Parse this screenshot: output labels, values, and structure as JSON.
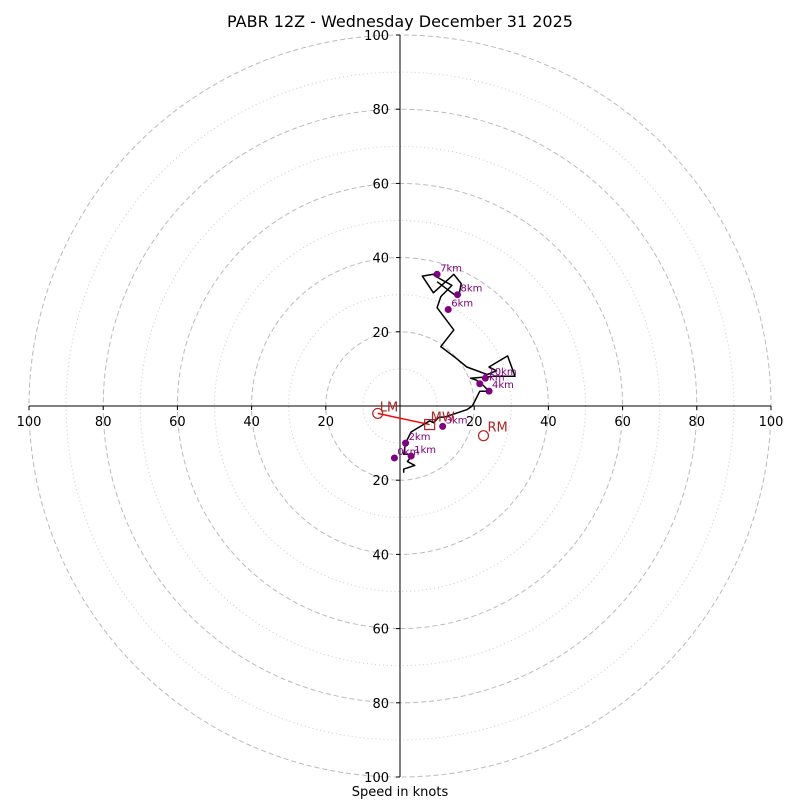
{
  "chart_data": {
    "type": "hodograph",
    "title": "PABR 12Z - Wednesday December 31 2025",
    "xlabel": "Speed in knots",
    "axis_range": [
      -100,
      100
    ],
    "ring_major": [
      20,
      40,
      60,
      80,
      100
    ],
    "ring_minor": [
      10,
      30,
      50,
      70,
      90
    ],
    "tick_labels": [
      "100",
      "80",
      "60",
      "40",
      "20",
      "20",
      "40",
      "60",
      "80",
      "100"
    ],
    "tick_values": [
      -100,
      -80,
      -60,
      -40,
      -20,
      20,
      40,
      60,
      80,
      100
    ],
    "colors": {
      "trace": "#000000",
      "marker": "#800080",
      "storm": "#b22222",
      "shear": "#ff0000",
      "grid": "#bbbbbb"
    },
    "trace": [
      [
        1,
        18
      ],
      [
        1,
        17
      ],
      [
        4,
        16
      ],
      [
        2,
        15
      ],
      [
        3.5,
        13
      ],
      [
        1,
        13
      ],
      [
        1.5,
        10
      ],
      [
        3,
        7
      ],
      [
        5.5,
        5.5
      ],
      [
        8,
        4
      ],
      [
        9,
        4.5
      ],
      [
        10.5,
        3
      ],
      [
        12,
        3
      ],
      [
        15,
        2
      ],
      [
        18,
        1
      ],
      [
        19.5,
        0
      ],
      [
        20.5,
        -2
      ],
      [
        21.5,
        -4
      ],
      [
        24,
        -4
      ],
      [
        22.5,
        -5.5
      ],
      [
        20.5,
        -7
      ],
      [
        19,
        -7.5
      ],
      [
        25.5,
        -8
      ],
      [
        31,
        -8
      ],
      [
        29,
        -13.5
      ],
      [
        24,
        -10.5
      ],
      [
        26,
        -9.5
      ],
      [
        23.5,
        -8.5
      ],
      [
        18,
        -10.5
      ],
      [
        15,
        -13
      ],
      [
        11,
        -16
      ],
      [
        14.5,
        -20.5
      ],
      [
        10,
        -26.5
      ],
      [
        11,
        -29.5
      ],
      [
        14,
        -32.5
      ],
      [
        9.5,
        -35
      ],
      [
        9,
        -35.5
      ],
      [
        6,
        -35
      ],
      [
        9,
        -30.5
      ],
      [
        14.5,
        -35.5
      ],
      [
        16.5,
        -33
      ],
      [
        16,
        -30.5
      ],
      [
        15.5,
        -29.5
      ],
      [
        14,
        -30.5
      ],
      [
        10,
        -33.5
      ]
    ],
    "height_markers": [
      {
        "label": "2km",
        "x": 1.5,
        "y": 10
      },
      {
        "label": "1km",
        "x": 3,
        "y": 13.5
      },
      {
        "label": "0km",
        "x": -1.5,
        "y": 14
      },
      {
        "label": "3km",
        "x": 11.5,
        "y": 5.5
      },
      {
        "label": "4km",
        "x": 24,
        "y": -4
      },
      {
        "label": "5km",
        "x": 21.5,
        "y": -6
      },
      {
        "label": "10km",
        "x": 23,
        "y": -7.5
      },
      {
        "label": "6km",
        "x": 13,
        "y": -26
      },
      {
        "label": "7km",
        "x": 10,
        "y": -35.5
      },
      {
        "label": "8km",
        "x": 15.5,
        "y": -30
      }
    ],
    "storm_motion": {
      "RM": {
        "label": "RM",
        "x": 22.5,
        "y": 8
      },
      "LM": {
        "label": "LM",
        "x": -6,
        "y": 2
      },
      "MW": {
        "label": "MW",
        "x": 8,
        "y": 5
      }
    }
  }
}
